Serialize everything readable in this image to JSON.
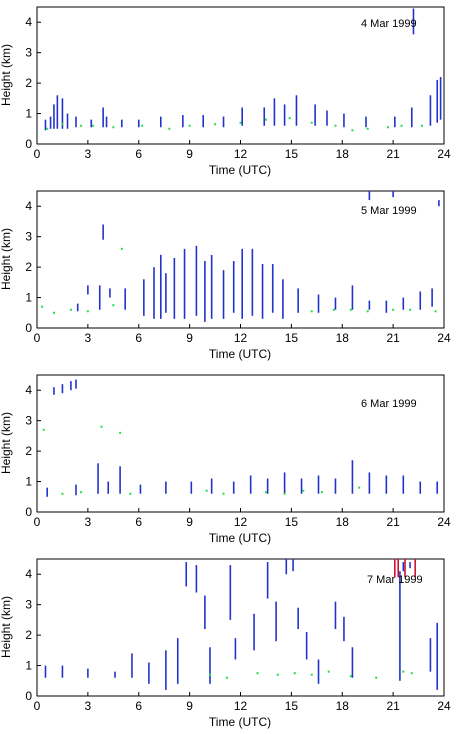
{
  "chart_data": [
    {
      "type": "scatter",
      "panel_label": "4 Mar 1999",
      "xlabel": "Time (UTC)",
      "ylabel": "Height (km)",
      "xlim": [
        0,
        24
      ],
      "ylim": [
        0,
        4.5
      ],
      "xticks": [
        0,
        3,
        6,
        9,
        12,
        15,
        18,
        21,
        24
      ],
      "yticks": [
        0,
        1,
        2,
        3,
        4
      ],
      "series": [
        {
          "color": "#2233cc",
          "segments": [
            {
              "x": 0.5,
              "y0": 0.45,
              "y1": 0.8
            },
            {
              "x": 0.8,
              "y0": 0.5,
              "y1": 0.9
            },
            {
              "x": 1.0,
              "y0": 0.5,
              "y1": 1.3
            },
            {
              "x": 1.2,
              "y0": 0.5,
              "y1": 1.6
            },
            {
              "x": 1.5,
              "y0": 0.5,
              "y1": 1.5
            },
            {
              "x": 1.8,
              "y0": 0.5,
              "y1": 1.0
            },
            {
              "x": 2.3,
              "y0": 0.55,
              "y1": 0.9
            },
            {
              "x": 3.2,
              "y0": 0.55,
              "y1": 0.8
            },
            {
              "x": 3.9,
              "y0": 0.55,
              "y1": 1.2
            },
            {
              "x": 4.1,
              "y0": 0.55,
              "y1": 0.9
            },
            {
              "x": 5.0,
              "y0": 0.55,
              "y1": 0.8
            },
            {
              "x": 6.0,
              "y0": 0.55,
              "y1": 0.8
            },
            {
              "x": 7.3,
              "y0": 0.55,
              "y1": 0.9
            },
            {
              "x": 8.6,
              "y0": 0.55,
              "y1": 0.95
            },
            {
              "x": 9.8,
              "y0": 0.55,
              "y1": 0.95
            },
            {
              "x": 11.0,
              "y0": 0.55,
              "y1": 0.9
            },
            {
              "x": 12.1,
              "y0": 0.6,
              "y1": 1.2
            },
            {
              "x": 13.4,
              "y0": 0.6,
              "y1": 1.2
            },
            {
              "x": 14.0,
              "y0": 0.6,
              "y1": 1.5
            },
            {
              "x": 14.6,
              "y0": 0.6,
              "y1": 1.3
            },
            {
              "x": 15.3,
              "y0": 0.6,
              "y1": 1.6
            },
            {
              "x": 16.4,
              "y0": 0.6,
              "y1": 1.3
            },
            {
              "x": 17.1,
              "y0": 0.6,
              "y1": 1.1
            },
            {
              "x": 18.1,
              "y0": 0.55,
              "y1": 1.0
            },
            {
              "x": 19.4,
              "y0": 0.55,
              "y1": 0.9
            },
            {
              "x": 21.1,
              "y0": 0.55,
              "y1": 0.9
            },
            {
              "x": 22.1,
              "y0": 0.55,
              "y1": 1.2
            },
            {
              "x": 22.2,
              "y0": 3.6,
              "y1": 4.45
            },
            {
              "x": 23.2,
              "y0": 0.6,
              "y1": 1.6
            },
            {
              "x": 23.6,
              "y0": 0.7,
              "y1": 2.1
            },
            {
              "x": 23.8,
              "y0": 0.8,
              "y1": 2.2
            }
          ]
        },
        {
          "color": "#22dd44",
          "x": [
            0.6,
            1.5,
            2.6,
            3.3,
            4.5,
            6.2,
            7.8,
            9.0,
            10.5,
            12.0,
            13.5,
            14.9,
            16.2,
            17.6,
            18.6,
            19.5,
            20.7,
            21.5,
            22.7
          ],
          "y": [
            0.5,
            0.65,
            0.6,
            0.6,
            0.55,
            0.6,
            0.5,
            0.6,
            0.65,
            0.7,
            0.8,
            0.85,
            0.7,
            0.6,
            0.45,
            0.5,
            0.55,
            0.6,
            0.6
          ]
        }
      ]
    },
    {
      "type": "scatter",
      "panel_label": "5 Mar 1999",
      "xlabel": "Time (UTC)",
      "ylabel": "Height (km)",
      "xlim": [
        0,
        24
      ],
      "ylim": [
        0,
        4.5
      ],
      "xticks": [
        0,
        3,
        6,
        9,
        12,
        15,
        18,
        21,
        24
      ],
      "yticks": [
        0,
        1,
        2,
        3,
        4
      ],
      "series": [
        {
          "color": "#2233cc",
          "segments": [
            {
              "x": 2.4,
              "y0": 0.55,
              "y1": 0.8
            },
            {
              "x": 3.0,
              "y0": 1.1,
              "y1": 1.4
            },
            {
              "x": 3.7,
              "y0": 0.6,
              "y1": 1.4
            },
            {
              "x": 3.9,
              "y0": 2.9,
              "y1": 3.4
            },
            {
              "x": 4.3,
              "y0": 1.0,
              "y1": 1.3
            },
            {
              "x": 5.2,
              "y0": 0.6,
              "y1": 1.3
            },
            {
              "x": 6.3,
              "y0": 0.4,
              "y1": 1.6
            },
            {
              "x": 6.9,
              "y0": 0.3,
              "y1": 2.0
            },
            {
              "x": 7.3,
              "y0": 0.3,
              "y1": 2.4
            },
            {
              "x": 7.6,
              "y0": 0.5,
              "y1": 1.8
            },
            {
              "x": 8.1,
              "y0": 0.3,
              "y1": 2.3
            },
            {
              "x": 8.7,
              "y0": 0.3,
              "y1": 2.6
            },
            {
              "x": 9.4,
              "y0": 0.4,
              "y1": 2.7
            },
            {
              "x": 9.9,
              "y0": 0.2,
              "y1": 2.2
            },
            {
              "x": 10.3,
              "y0": 0.3,
              "y1": 2.4
            },
            {
              "x": 11.0,
              "y0": 0.3,
              "y1": 1.9
            },
            {
              "x": 11.6,
              "y0": 0.5,
              "y1": 2.2
            },
            {
              "x": 12.1,
              "y0": 0.3,
              "y1": 2.6
            },
            {
              "x": 12.7,
              "y0": 0.4,
              "y1": 2.6
            },
            {
              "x": 13.3,
              "y0": 0.3,
              "y1": 2.1
            },
            {
              "x": 13.9,
              "y0": 0.5,
              "y1": 2.1
            },
            {
              "x": 14.5,
              "y0": 0.3,
              "y1": 1.6
            },
            {
              "x": 15.4,
              "y0": 0.5,
              "y1": 1.3
            },
            {
              "x": 16.6,
              "y0": 0.5,
              "y1": 1.1
            },
            {
              "x": 17.6,
              "y0": 0.6,
              "y1": 1.0
            },
            {
              "x": 18.6,
              "y0": 0.6,
              "y1": 1.4
            },
            {
              "x": 19.6,
              "y0": 0.6,
              "y1": 0.9
            },
            {
              "x": 20.6,
              "y0": 0.5,
              "y1": 0.9
            },
            {
              "x": 21.6,
              "y0": 0.6,
              "y1": 1.0
            },
            {
              "x": 22.6,
              "y0": 0.6,
              "y1": 1.2
            },
            {
              "x": 23.3,
              "y0": 0.7,
              "y1": 1.3
            },
            {
              "x": 19.6,
              "y0": 4.2,
              "y1": 4.5
            },
            {
              "x": 21.0,
              "y0": 4.3,
              "y1": 4.5
            },
            {
              "x": 23.7,
              "y0": 4.0,
              "y1": 4.2
            }
          ]
        },
        {
          "color": "#22dd44",
          "x": [
            0.3,
            1.0,
            2.0,
            3.0,
            4.5,
            5.0,
            16.2,
            17.5,
            18.5,
            19.5,
            21.0,
            22.0,
            23.5
          ],
          "y": [
            0.7,
            0.5,
            0.6,
            0.55,
            0.75,
            2.6,
            0.55,
            0.6,
            0.6,
            0.55,
            0.6,
            0.6,
            0.55
          ]
        }
      ]
    },
    {
      "type": "scatter",
      "panel_label": "6 Mar 1999",
      "xlabel": "Time (UTC)",
      "ylabel": "Height (km)",
      "xlim": [
        0,
        24
      ],
      "ylim": [
        0,
        4.5
      ],
      "xticks": [
        0,
        3,
        6,
        9,
        12,
        15,
        18,
        21,
        24
      ],
      "yticks": [
        0,
        1,
        2,
        3,
        4
      ],
      "series": [
        {
          "color": "#2233cc",
          "segments": [
            {
              "x": 1.0,
              "y0": 3.85,
              "y1": 4.1
            },
            {
              "x": 1.5,
              "y0": 3.9,
              "y1": 4.2
            },
            {
              "x": 2.0,
              "y0": 4.0,
              "y1": 4.3
            },
            {
              "x": 2.3,
              "y0": 4.05,
              "y1": 4.35
            },
            {
              "x": 0.6,
              "y0": 0.5,
              "y1": 0.8
            },
            {
              "x": 2.3,
              "y0": 0.55,
              "y1": 0.9
            },
            {
              "x": 3.6,
              "y0": 0.6,
              "y1": 1.6
            },
            {
              "x": 4.2,
              "y0": 0.6,
              "y1": 1.0
            },
            {
              "x": 4.9,
              "y0": 0.6,
              "y1": 1.5
            },
            {
              "x": 6.1,
              "y0": 0.6,
              "y1": 0.9
            },
            {
              "x": 7.6,
              "y0": 0.6,
              "y1": 1.0
            },
            {
              "x": 9.1,
              "y0": 0.6,
              "y1": 1.0
            },
            {
              "x": 10.3,
              "y0": 0.6,
              "y1": 1.1
            },
            {
              "x": 11.6,
              "y0": 0.6,
              "y1": 1.0
            },
            {
              "x": 12.6,
              "y0": 0.6,
              "y1": 1.2
            },
            {
              "x": 13.6,
              "y0": 0.6,
              "y1": 1.1
            },
            {
              "x": 14.6,
              "y0": 0.6,
              "y1": 1.3
            },
            {
              "x": 15.6,
              "y0": 0.6,
              "y1": 1.1
            },
            {
              "x": 16.6,
              "y0": 0.6,
              "y1": 1.2
            },
            {
              "x": 17.6,
              "y0": 0.6,
              "y1": 1.1
            },
            {
              "x": 18.6,
              "y0": 0.6,
              "y1": 1.7
            },
            {
              "x": 19.6,
              "y0": 0.6,
              "y1": 1.3
            },
            {
              "x": 20.6,
              "y0": 0.6,
              "y1": 1.2
            },
            {
              "x": 21.6,
              "y0": 0.6,
              "y1": 1.2
            },
            {
              "x": 22.6,
              "y0": 0.6,
              "y1": 1.0
            },
            {
              "x": 23.6,
              "y0": 0.6,
              "y1": 1.0
            }
          ]
        },
        {
          "color": "#22dd44",
          "x": [
            0.4,
            1.5,
            2.6,
            3.8,
            4.9,
            5.5,
            10.0,
            11.0,
            13.5,
            14.6,
            15.7,
            16.8,
            19.0
          ],
          "y": [
            2.7,
            0.6,
            0.65,
            2.8,
            2.6,
            0.6,
            0.7,
            0.6,
            0.65,
            0.6,
            0.7,
            0.65,
            0.8
          ]
        }
      ]
    },
    {
      "type": "scatter",
      "panel_label": "7 Mar 1999",
      "xlabel": "Time (UTC)",
      "ylabel": "Height (km)",
      "xlim": [
        0,
        24
      ],
      "ylim": [
        0,
        4.5
      ],
      "xticks": [
        0,
        3,
        6,
        9,
        12,
        15,
        18,
        21,
        24
      ],
      "yticks": [
        0,
        1,
        2,
        3,
        4
      ],
      "series": [
        {
          "color": "#2233cc",
          "segments": [
            {
              "x": 0.5,
              "y0": 0.6,
              "y1": 1.0
            },
            {
              "x": 1.5,
              "y0": 0.6,
              "y1": 1.0
            },
            {
              "x": 3.0,
              "y0": 0.6,
              "y1": 0.9
            },
            {
              "x": 4.6,
              "y0": 0.6,
              "y1": 0.8
            },
            {
              "x": 5.6,
              "y0": 0.6,
              "y1": 1.4
            },
            {
              "x": 6.6,
              "y0": 0.4,
              "y1": 1.1
            },
            {
              "x": 7.6,
              "y0": 0.2,
              "y1": 1.5
            },
            {
              "x": 8.3,
              "y0": 0.4,
              "y1": 1.9
            },
            {
              "x": 8.8,
              "y0": 3.6,
              "y1": 4.4
            },
            {
              "x": 9.4,
              "y0": 3.4,
              "y1": 4.3
            },
            {
              "x": 9.9,
              "y0": 2.2,
              "y1": 3.3
            },
            {
              "x": 10.2,
              "y0": 0.4,
              "y1": 1.6
            },
            {
              "x": 11.4,
              "y0": 2.5,
              "y1": 4.3
            },
            {
              "x": 11.7,
              "y0": 1.2,
              "y1": 1.9
            },
            {
              "x": 12.8,
              "y0": 1.5,
              "y1": 2.7
            },
            {
              "x": 13.6,
              "y0": 3.2,
              "y1": 4.4
            },
            {
              "x": 14.1,
              "y0": 1.8,
              "y1": 3.1
            },
            {
              "x": 14.7,
              "y0": 4.0,
              "y1": 4.5
            },
            {
              "x": 15.1,
              "y0": 4.1,
              "y1": 4.5
            },
            {
              "x": 15.4,
              "y0": 2.2,
              "y1": 2.9
            },
            {
              "x": 15.9,
              "y0": 1.2,
              "y1": 2.1
            },
            {
              "x": 16.6,
              "y0": 0.4,
              "y1": 1.2
            },
            {
              "x": 17.6,
              "y0": 2.2,
              "y1": 3.1
            },
            {
              "x": 18.1,
              "y0": 1.8,
              "y1": 2.6
            },
            {
              "x": 18.6,
              "y0": 0.6,
              "y1": 1.6
            },
            {
              "x": 21.4,
              "y0": 0.5,
              "y1": 4.1
            },
            {
              "x": 23.2,
              "y0": 0.8,
              "y1": 1.9
            },
            {
              "x": 23.6,
              "y0": 0.2,
              "y1": 2.4
            },
            {
              "x": 21.6,
              "y0": 4.1,
              "y1": 4.4
            },
            {
              "x": 22.0,
              "y0": 4.2,
              "y1": 4.4
            }
          ]
        },
        {
          "color": "#22dd44",
          "x": [
            10.2,
            11.2,
            13.0,
            14.2,
            15.2,
            16.2,
            17.2,
            18.5,
            20.0,
            21.6,
            22.1
          ],
          "y": [
            0.7,
            0.6,
            0.75,
            0.7,
            0.75,
            0.7,
            0.8,
            0.65,
            0.6,
            0.8,
            0.75
          ]
        },
        {
          "color": "#cc1133",
          "segments": [
            {
              "x": 21.1,
              "y0": 3.9,
              "y1": 4.5
            },
            {
              "x": 21.3,
              "y0": 3.9,
              "y1": 4.5
            },
            {
              "x": 21.7,
              "y0": 3.9,
              "y1": 4.5
            },
            {
              "x": 22.3,
              "y0": 3.9,
              "y1": 4.5
            }
          ]
        }
      ]
    }
  ]
}
